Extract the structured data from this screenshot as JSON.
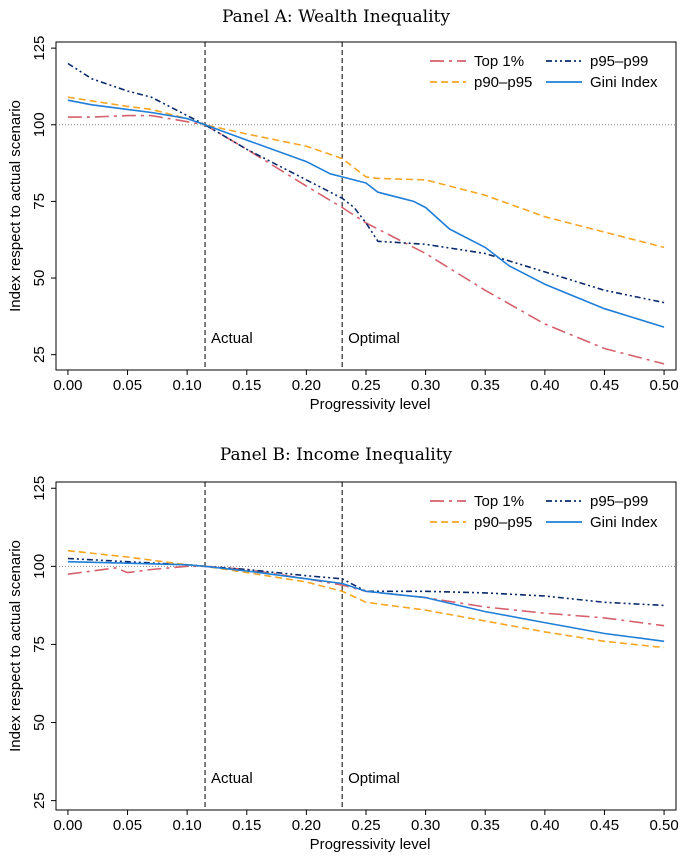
{
  "chart_data": [
    {
      "type": "line",
      "title": "Panel A: Wealth Inequality",
      "xlabel": "Progressivity level",
      "ylabel": "Index respect to actual scenario",
      "xlim": [
        -0.01,
        0.51
      ],
      "ylim": [
        20,
        127
      ],
      "xticks": [
        0.0,
        0.05,
        0.1,
        0.15,
        0.2,
        0.25,
        0.3,
        0.35,
        0.4,
        0.45,
        0.5
      ],
      "xtick_labels": [
        "0.00",
        "0.05",
        "0.10",
        "0.15",
        "0.20",
        "0.25",
        "0.30",
        "0.35",
        "0.40",
        "0.45",
        "0.50"
      ],
      "yticks": [
        25,
        50,
        75,
        100,
        125
      ],
      "ytick_labels": [
        "25",
        "50",
        "75",
        "100",
        "125"
      ],
      "reference_line": 100,
      "vlines": [
        {
          "x": 0.115,
          "label": "Actual"
        },
        {
          "x": 0.23,
          "label": "Optimal"
        }
      ],
      "legend": "top-right",
      "series": [
        {
          "name": "Top 1%",
          "color": "#d6606d",
          "dash": "longdash-dot",
          "x": [
            0.0,
            0.02,
            0.05,
            0.07,
            0.1,
            0.115,
            0.15,
            0.2,
            0.23,
            0.25,
            0.3,
            0.35,
            0.4,
            0.45,
            0.5
          ],
          "y": [
            102.5,
            102.5,
            103,
            103,
            101,
            100,
            92,
            80,
            73,
            68,
            58,
            46,
            35,
            27,
            22
          ]
        },
        {
          "name": "p95–p99",
          "color": "#0a2a6b",
          "dash": "dash-dot-dot",
          "x": [
            0.0,
            0.02,
            0.05,
            0.07,
            0.1,
            0.115,
            0.15,
            0.2,
            0.23,
            0.24,
            0.25,
            0.26,
            0.3,
            0.35,
            0.4,
            0.45,
            0.5
          ],
          "y": [
            120,
            115,
            111,
            109,
            103,
            100,
            92,
            82,
            76,
            73,
            68,
            62,
            61,
            58,
            52,
            46,
            42
          ]
        },
        {
          "name": "p90–p95",
          "color": "#f5a623",
          "dash": "dash",
          "x": [
            0.0,
            0.05,
            0.07,
            0.1,
            0.115,
            0.15,
            0.2,
            0.23,
            0.25,
            0.26,
            0.3,
            0.35,
            0.4,
            0.45,
            0.5
          ],
          "y": [
            109,
            106,
            105,
            102,
            100,
            97,
            93,
            89,
            83,
            82.5,
            82,
            77,
            70,
            65,
            60
          ]
        },
        {
          "name": "Gini Index",
          "color": "#1f7ed8",
          "dash": "solid",
          "x": [
            0.0,
            0.02,
            0.05,
            0.07,
            0.1,
            0.115,
            0.15,
            0.2,
            0.22,
            0.23,
            0.25,
            0.26,
            0.28,
            0.29,
            0.3,
            0.32,
            0.35,
            0.37,
            0.4,
            0.45,
            0.5
          ],
          "y": [
            108,
            106.5,
            105,
            104,
            102,
            100,
            95,
            88,
            84,
            83,
            81,
            78,
            76,
            75,
            73,
            66,
            60,
            54,
            48,
            40,
            34
          ]
        }
      ]
    },
    {
      "type": "line",
      "title": "Panel B: Income Inequality",
      "xlabel": "Progressivity level",
      "ylabel": "Index respect to actual scenario",
      "xlim": [
        -0.01,
        0.51
      ],
      "ylim": [
        22,
        127
      ],
      "xticks": [
        0.0,
        0.05,
        0.1,
        0.15,
        0.2,
        0.25,
        0.3,
        0.35,
        0.4,
        0.45,
        0.5
      ],
      "xtick_labels": [
        "0.00",
        "0.05",
        "0.10",
        "0.15",
        "0.20",
        "0.25",
        "0.30",
        "0.35",
        "0.40",
        "0.45",
        "0.50"
      ],
      "yticks": [
        25,
        50,
        75,
        100,
        125
      ],
      "ytick_labels": [
        "25",
        "50",
        "75",
        "100",
        "125"
      ],
      "reference_line": 100,
      "vlines": [
        {
          "x": 0.115,
          "label": "Actual"
        },
        {
          "x": 0.23,
          "label": "Optimal"
        }
      ],
      "legend": "top-right",
      "series": [
        {
          "name": "Top 1%",
          "color": "#d6606d",
          "dash": "longdash-dot",
          "x": [
            0.0,
            0.04,
            0.05,
            0.07,
            0.1,
            0.115,
            0.15,
            0.2,
            0.23,
            0.25,
            0.3,
            0.35,
            0.4,
            0.45,
            0.5
          ],
          "y": [
            97.5,
            99.5,
            98,
            99,
            100,
            100,
            99,
            96,
            94,
            92,
            90,
            87,
            85,
            83.5,
            81
          ]
        },
        {
          "name": "p95–p99",
          "color": "#0a2a6b",
          "dash": "dash-dot-dot",
          "x": [
            0.0,
            0.05,
            0.1,
            0.115,
            0.15,
            0.2,
            0.23,
            0.25,
            0.3,
            0.35,
            0.4,
            0.45,
            0.5
          ],
          "y": [
            102.5,
            101.5,
            100.5,
            100,
            99,
            97,
            96,
            92,
            92,
            91.5,
            90.5,
            88.5,
            87.5
          ]
        },
        {
          "name": "p90–p95",
          "color": "#f5a623",
          "dash": "dash",
          "x": [
            0.0,
            0.05,
            0.1,
            0.115,
            0.15,
            0.2,
            0.23,
            0.25,
            0.3,
            0.35,
            0.4,
            0.45,
            0.5
          ],
          "y": [
            105,
            103,
            100.5,
            100,
            98,
            95,
            92,
            88.5,
            86,
            82.5,
            79,
            76,
            74
          ]
        },
        {
          "name": "Gini Index",
          "color": "#1f7ed8",
          "dash": "solid",
          "x": [
            0.0,
            0.05,
            0.1,
            0.115,
            0.15,
            0.2,
            0.23,
            0.25,
            0.3,
            0.35,
            0.4,
            0.45,
            0.5
          ],
          "y": [
            101.5,
            101,
            100.5,
            100,
            98.5,
            96,
            94.5,
            92,
            90,
            85.5,
            82,
            78.5,
            76
          ]
        }
      ]
    }
  ]
}
